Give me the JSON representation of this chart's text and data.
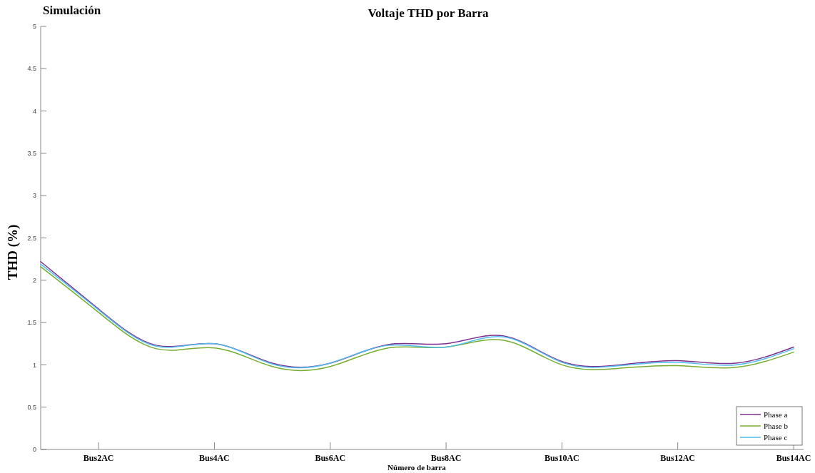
{
  "chart_data": {
    "type": "line",
    "title": "Voltaje THD por Barra",
    "xlabel": "Número de barra",
    "ylabel": "THD (%)",
    "annotations": [
      "Simulación"
    ],
    "categories": [
      null,
      "Bus2AC",
      null,
      "Bus4AC",
      null,
      "Bus6AC",
      null,
      "Bus8AC",
      null,
      "Bus10AC",
      null,
      "Bus12AC",
      null,
      "Bus14AC"
    ],
    "series": [
      {
        "name": "Phase a",
        "color": "#7e2f8e",
        "values": [
          2.22,
          1.66,
          1.23,
          1.25,
          1.02,
          1.02,
          1.24,
          1.25,
          1.34,
          1.04,
          1.0,
          1.05,
          1.02,
          1.21
        ]
      },
      {
        "name": "Phase b",
        "color": "#77ac30",
        "values": [
          2.16,
          1.62,
          1.19,
          1.2,
          0.98,
          0.98,
          1.2,
          1.21,
          1.29,
          1.0,
          0.96,
          0.99,
          0.97,
          1.15
        ]
      },
      {
        "name": "Phase c",
        "color": "#4dbeee",
        "values": [
          2.19,
          1.65,
          1.22,
          1.25,
          1.01,
          1.02,
          1.23,
          1.21,
          1.33,
          1.03,
          0.99,
          1.03,
          1.0,
          1.19
        ]
      }
    ],
    "ylim": [
      0,
      5
    ],
    "yticks": [
      0,
      0.5,
      1,
      1.5,
      2,
      2.5,
      3,
      3.5,
      4,
      4.5,
      5
    ],
    "grid": false,
    "legend": "bottom right",
    "marker": "none",
    "line_style": "solid"
  }
}
